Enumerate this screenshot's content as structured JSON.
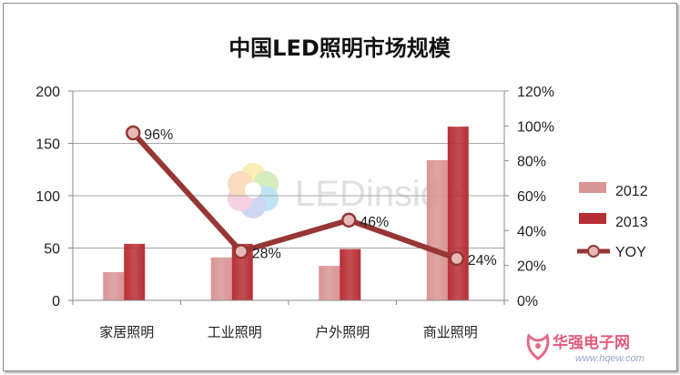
{
  "chart_data": {
    "type": "bar",
    "title": "中国LED照明市场规模",
    "categories": [
      "家居照明",
      "工业照明",
      "户外照明",
      "商业照明"
    ],
    "series": [
      {
        "name": "2012",
        "type": "bar",
        "axis": "left",
        "color": "#d99594",
        "values": [
          27,
          41,
          33,
          134
        ]
      },
      {
        "name": "2013",
        "type": "bar",
        "axis": "left",
        "color": "#b72f34",
        "values": [
          54,
          54,
          49,
          166
        ]
      },
      {
        "name": "YOY",
        "type": "line",
        "axis": "right",
        "color": "#953735",
        "marker_color": "#e6b9b8",
        "values": [
          96,
          28,
          46,
          24
        ],
        "labels": [
          "96%",
          "28%",
          "46%",
          "24%"
        ]
      }
    ],
    "y_left": {
      "ylim": [
        0,
        200
      ],
      "ticks": [
        "200",
        "150",
        "100",
        "50",
        "0"
      ]
    },
    "y_right": {
      "ylim": [
        0,
        120
      ],
      "ticks": [
        "120%",
        "100%",
        "80%",
        "60%",
        "40%",
        "20%",
        "0%"
      ]
    },
    "grid": true,
    "legend_position": "right"
  },
  "watermark": {
    "text": "LEDinside"
  },
  "site_logo": {
    "name": "华强电子网",
    "url": "www.hqew.com"
  }
}
